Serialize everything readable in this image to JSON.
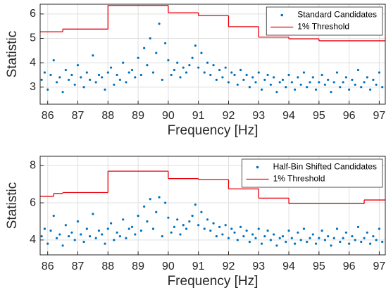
{
  "chart_data": [
    {
      "type": "scatter",
      "xlabel": "Frequency [Hz]",
      "ylabel": "Statistic",
      "xlim": [
        85.75,
        97.2
      ],
      "ylim": [
        2.3,
        6.4
      ],
      "xticks": [
        86,
        87,
        88,
        89,
        90,
        91,
        92,
        93,
        94,
        95,
        96,
        97
      ],
      "yticks": [
        3,
        4,
        5,
        6
      ],
      "grid": true,
      "legend": "upper right",
      "series": [
        {
          "name": "Standard Candidates",
          "color": "#0072bd",
          "marker": "dot",
          "x": [
            85.8,
            85.9,
            86.0,
            86.1,
            86.2,
            86.3,
            86.4,
            86.5,
            86.6,
            86.7,
            86.8,
            86.9,
            87.0,
            87.1,
            87.2,
            87.3,
            87.4,
            87.5,
            87.6,
            87.7,
            87.8,
            87.9,
            88.0,
            88.1,
            88.2,
            88.3,
            88.4,
            88.5,
            88.6,
            88.7,
            88.8,
            88.9,
            89.0,
            89.1,
            89.2,
            89.3,
            89.4,
            89.5,
            89.6,
            89.7,
            89.8,
            89.9,
            90.0,
            90.1,
            90.2,
            90.3,
            90.4,
            90.5,
            90.6,
            90.7,
            90.8,
            90.9,
            91.0,
            91.1,
            91.2,
            91.3,
            91.4,
            91.5,
            91.6,
            91.7,
            91.8,
            91.9,
            92.0,
            92.1,
            92.2,
            92.3,
            92.4,
            92.5,
            92.6,
            92.7,
            92.8,
            92.9,
            93.0,
            93.1,
            93.2,
            93.3,
            93.4,
            93.5,
            93.6,
            93.7,
            93.8,
            93.9,
            94.0,
            94.1,
            94.2,
            94.3,
            94.4,
            94.5,
            94.6,
            94.7,
            94.8,
            94.9,
            95.0,
            95.1,
            95.2,
            95.3,
            95.4,
            95.5,
            95.6,
            95.7,
            95.8,
            95.9,
            96.0,
            96.1,
            96.2,
            96.3,
            96.4,
            96.5,
            96.6,
            96.7,
            96.8,
            96.9,
            97.0,
            97.1
          ],
          "values": [
            3.3,
            3.6,
            2.9,
            3.5,
            4.1,
            3.2,
            3.4,
            2.8,
            3.7,
            3.3,
            3.5,
            3.1,
            3.9,
            3.4,
            3.0,
            3.6,
            3.3,
            4.3,
            3.2,
            3.5,
            3.4,
            2.9,
            3.6,
            3.8,
            3.1,
            3.5,
            3.3,
            4.0,
            3.2,
            3.6,
            3.7,
            3.4,
            4.2,
            3.5,
            4.6,
            3.9,
            5.0,
            3.6,
            4.4,
            5.6,
            3.3,
            4.8,
            4.1,
            3.5,
            3.7,
            4.0,
            3.4,
            3.8,
            3.6,
            3.9,
            4.2,
            4.7,
            3.8,
            4.4,
            3.6,
            4.0,
            3.5,
            3.9,
            3.3,
            3.7,
            3.4,
            3.8,
            3.2,
            3.6,
            3.5,
            3.1,
            3.7,
            3.3,
            3.5,
            3.0,
            3.4,
            3.2,
            3.6,
            2.9,
            3.3,
            3.5,
            3.1,
            3.4,
            2.8,
            3.2,
            3.3,
            3.0,
            3.5,
            3.2,
            2.9,
            3.4,
            3.1,
            3.6,
            3.0,
            3.2,
            3.4,
            2.9,
            3.2,
            3.5,
            3.1,
            3.3,
            2.8,
            3.2,
            3.6,
            3.0,
            3.2,
            3.4,
            2.9,
            3.3,
            3.1,
            3.7,
            3.0,
            3.2,
            3.4,
            2.9,
            3.3,
            3.1,
            3.6,
            3.0
          ]
        },
        {
          "name": "1% Threshold",
          "color": "#e8000b",
          "drawstyle": "steps-post",
          "x": [
            85.75,
            86.5,
            88,
            90,
            91,
            92,
            93,
            94,
            95
          ],
          "values": [
            5.27,
            5.38,
            6.35,
            6.05,
            5.93,
            5.48,
            5.05,
            4.98,
            4.9
          ]
        }
      ]
    },
    {
      "type": "scatter",
      "xlabel": "Frequency [Hz]",
      "ylabel": "Statistic",
      "xlim": [
        85.75,
        97.2
      ],
      "ylim": [
        3.2,
        8.5
      ],
      "xticks": [
        86,
        87,
        88,
        89,
        90,
        91,
        92,
        93,
        94,
        95,
        96,
        97
      ],
      "yticks": [
        4,
        6,
        8
      ],
      "grid": true,
      "legend": "upper right",
      "series": [
        {
          "name": "Half-Bin Shifted Candidates",
          "color": "#0072bd",
          "marker": "dot",
          "x": [
            85.8,
            85.9,
            86.0,
            86.1,
            86.2,
            86.3,
            86.4,
            86.5,
            86.6,
            86.7,
            86.8,
            86.9,
            87.0,
            87.1,
            87.2,
            87.3,
            87.4,
            87.5,
            87.6,
            87.7,
            87.8,
            87.9,
            88.0,
            88.1,
            88.2,
            88.3,
            88.4,
            88.5,
            88.6,
            88.7,
            88.8,
            88.9,
            89.0,
            89.1,
            89.2,
            89.3,
            89.4,
            89.5,
            89.6,
            89.7,
            89.8,
            89.9,
            90.0,
            90.1,
            90.2,
            90.3,
            90.4,
            90.5,
            90.6,
            90.7,
            90.8,
            90.9,
            91.0,
            91.1,
            91.2,
            91.3,
            91.4,
            91.5,
            91.6,
            91.7,
            91.8,
            91.9,
            92.0,
            92.1,
            92.2,
            92.3,
            92.4,
            92.5,
            92.6,
            92.7,
            92.8,
            92.9,
            93.0,
            93.1,
            93.2,
            93.3,
            93.4,
            93.5,
            93.6,
            93.7,
            93.8,
            93.9,
            94.0,
            94.1,
            94.2,
            94.3,
            94.4,
            94.5,
            94.6,
            94.7,
            94.8,
            94.9,
            95.0,
            95.1,
            95.2,
            95.3,
            95.4,
            95.5,
            95.6,
            95.7,
            95.8,
            95.9,
            96.0,
            96.1,
            96.2,
            96.3,
            96.4,
            96.5,
            96.6,
            96.7,
            96.8,
            96.9,
            97.0,
            97.1
          ],
          "values": [
            4.2,
            4.6,
            3.8,
            4.5,
            5.3,
            4.1,
            4.3,
            3.7,
            4.8,
            4.2,
            4.4,
            4.0,
            5.0,
            4.3,
            3.9,
            4.6,
            4.2,
            5.4,
            4.1,
            4.5,
            4.3,
            3.8,
            4.6,
            4.9,
            4.0,
            4.4,
            4.2,
            5.1,
            4.1,
            4.6,
            4.7,
            4.3,
            5.3,
            4.5,
            5.8,
            5.0,
            6.2,
            4.6,
            5.5,
            6.3,
            4.2,
            6.0,
            5.2,
            4.4,
            4.7,
            5.1,
            4.3,
            4.8,
            4.6,
            5.0,
            5.3,
            5.9,
            4.8,
            5.5,
            4.6,
            5.1,
            4.5,
            4.9,
            4.2,
            4.7,
            4.3,
            4.8,
            4.1,
            4.6,
            4.4,
            4.0,
            4.7,
            4.2,
            4.5,
            3.9,
            4.3,
            4.1,
            4.6,
            3.8,
            4.2,
            4.5,
            4.0,
            4.3,
            3.7,
            4.1,
            4.2,
            3.9,
            4.5,
            4.1,
            3.8,
            4.4,
            4.0,
            4.6,
            3.9,
            4.1,
            4.3,
            3.8,
            4.1,
            4.5,
            4.0,
            4.2,
            3.7,
            4.1,
            4.6,
            3.9,
            4.1,
            4.4,
            3.8,
            4.2,
            4.0,
            4.7,
            3.9,
            4.1,
            4.4,
            3.8,
            4.2,
            4.0,
            4.6,
            3.9
          ]
        },
        {
          "name": "1% Threshold",
          "color": "#e8000b",
          "drawstyle": "steps-post",
          "x": [
            85.75,
            86.2,
            86.5,
            88,
            90,
            91,
            92,
            93,
            94,
            96.5
          ],
          "values": [
            6.35,
            6.5,
            6.55,
            7.7,
            7.3,
            7.25,
            6.75,
            6.25,
            5.95,
            6.15
          ]
        }
      ]
    }
  ]
}
